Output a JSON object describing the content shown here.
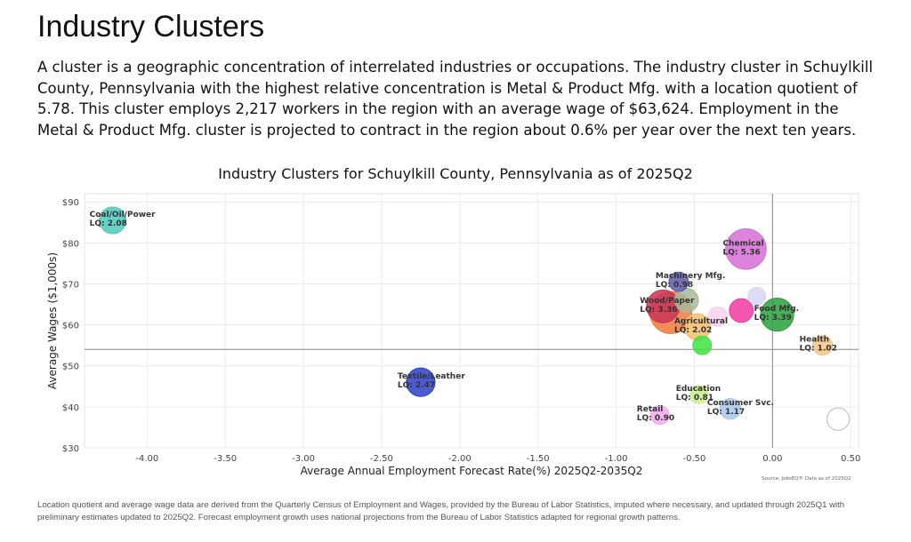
{
  "header": {
    "title": "Industry Clusters",
    "intro": "A cluster is a geographic concentration of interrelated industries or occupations. The industry cluster in Schuylkill County, Pennsylvania with the highest relative concentration is Metal & Product Mfg. with a location quotient of 5.78. This cluster employs 2,217 workers in the region with an average wage of $63,624. Employment in the Metal & Product Mfg. cluster is projected to contract in the region about 0.6% per year over the next ten years."
  },
  "footer": {
    "source": "Source: JobsEQ® Data as of 2025Q2",
    "note": "Location quotient and average wage data are derived from the Quarterly Census of Employment and Wages, provided by the Bureau of Labor Statistics, imputed where necessary, and updated through 2025Q1 with preliminary estimates updated to 2025Q2. Forecast employment growth uses national projections from the Bureau of Labor Statistics adapted for regional growth patterns."
  },
  "chart_data": {
    "type": "scatter",
    "title": "Industry Clusters for Schuylkill County, Pennsylvania as of 2025Q2",
    "xlabel": "Average Annual Employment Forecast Rate(%) 2025Q2-2035Q2",
    "ylabel": "Average Wages ($1,000s)",
    "xlim": [
      -4.4,
      0.55
    ],
    "ylim": [
      30,
      92
    ],
    "x_ticks": [
      "-4.00",
      "-3.50",
      "-3.00",
      "-2.50",
      "-2.00",
      "-1.50",
      "-1.00",
      "-0.50",
      "0.00",
      "0.50"
    ],
    "y_ticks": [
      "$30",
      "$40",
      "$50",
      "$60",
      "$70",
      "$80",
      "$90"
    ],
    "x_tick_values": [
      -4.0,
      -3.5,
      -3.0,
      -2.5,
      -2.0,
      -1.5,
      -1.0,
      -0.5,
      0.0,
      0.5
    ],
    "y_tick_values": [
      30,
      40,
      50,
      60,
      70,
      80,
      90
    ],
    "reference_lines": {
      "x": 0.0,
      "y": 54
    },
    "grid": true,
    "points": [
      {
        "name": "Coal/Oil/Power",
        "lq_label": "LQ: 2.08",
        "x": -4.22,
        "y": 85.5,
        "lq": 2.08,
        "color": "#4fc7bd"
      },
      {
        "name": "Textile/Leather",
        "lq_label": "LQ: 2.47",
        "x": -2.25,
        "y": 46,
        "lq": 2.47,
        "color": "#2b3fc9"
      },
      {
        "name": "Chemical",
        "lq_label": "LQ: 5.36",
        "x": -0.17,
        "y": 78.5,
        "lq": 5.36,
        "color": "#d66fd6"
      },
      {
        "name": "Machinery Mfg.",
        "lq_label": "LQ: 0.98",
        "x": -0.6,
        "y": 70.5,
        "lq": 0.98,
        "color": "#5a5aa8"
      },
      {
        "name": "",
        "lq_label": "",
        "x": -0.55,
        "y": 66,
        "lq": 1.6,
        "color": "#a7b89a"
      },
      {
        "name": "",
        "lq_label": "",
        "x": -0.1,
        "y": 67,
        "lq": 0.8,
        "color": "#d8d6f6"
      },
      {
        "name": "",
        "lq_label": "",
        "x": -0.65,
        "y": 63,
        "lq": 5.78,
        "color": "#ef7b3b"
      },
      {
        "name": "Wood/Paper",
        "lq_label": "LQ: 3.36",
        "x": -0.7,
        "y": 64.5,
        "lq": 3.36,
        "color": "#cc3355"
      },
      {
        "name": "Agricultural",
        "lq_label": "LQ: 2.02",
        "x": -0.48,
        "y": 59.5,
        "lq": 2.02,
        "color": "#f1c06e"
      },
      {
        "name": "",
        "lq_label": "",
        "x": -0.35,
        "y": 62,
        "lq": 1.0,
        "color": "#f7d2ee"
      },
      {
        "name": "",
        "lq_label": "",
        "x": -0.2,
        "y": 63.5,
        "lq": 1.6,
        "color": "#f03aa0"
      },
      {
        "name": "Food Mfg.",
        "lq_label": "LQ: 3.39",
        "x": 0.03,
        "y": 62.5,
        "lq": 3.39,
        "color": "#2aa03c"
      },
      {
        "name": "",
        "lq_label": "",
        "x": -0.45,
        "y": 55,
        "lq": 0.9,
        "color": "#3fe43f"
      },
      {
        "name": "Health",
        "lq_label": "LQ: 1.02",
        "x": 0.32,
        "y": 55,
        "lq": 1.02,
        "color": "#f3c68a"
      },
      {
        "name": "Education",
        "lq_label": "LQ: 0.81",
        "x": -0.47,
        "y": 43,
        "lq": 0.81,
        "color": "#c6ee8c"
      },
      {
        "name": "Consumer Svc.",
        "lq_label": "LQ: 1.17",
        "x": -0.27,
        "y": 39.5,
        "lq": 1.17,
        "color": "#a8c8ec"
      },
      {
        "name": "Retail",
        "lq_label": "LQ: 0.90",
        "x": -0.72,
        "y": 38,
        "lq": 0.9,
        "color": "#f4a8f0"
      },
      {
        "name": "",
        "lq_label": "",
        "x": 0.42,
        "y": 37,
        "lq": 1.4,
        "color": "#ffffff",
        "stroke": "#bbbbbb"
      }
    ]
  }
}
